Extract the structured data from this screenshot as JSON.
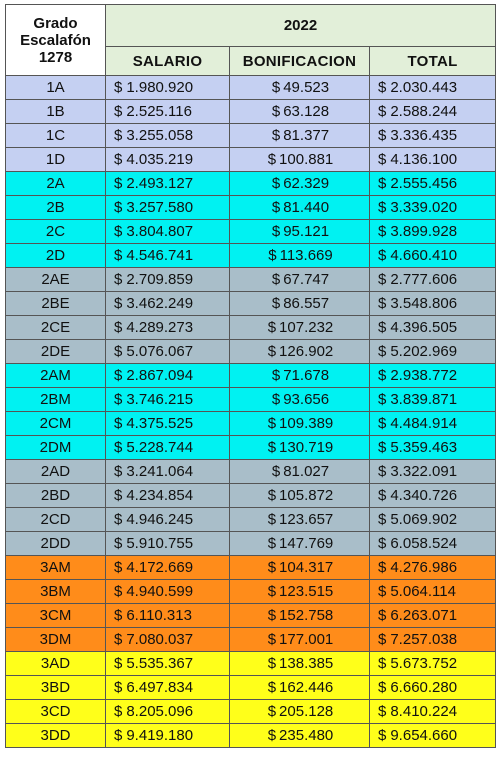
{
  "header": {
    "grado_line1": "Grado",
    "grado_line2": "Escalafón",
    "grado_line3": "1278",
    "year": "2022",
    "col_salario": "SALARIO",
    "col_bonificacion": "BONIFICACION",
    "col_total": "TOTAL"
  },
  "currency": "$",
  "group_colors": {
    "blue": "#c5d0f2",
    "cyan": "#00f2f2",
    "gray": "#a9bec9",
    "orange": "#ff8c1a",
    "yellow": "#ffff1a",
    "header_green": "#e2efd9"
  },
  "rows": [
    {
      "grado": "1A",
      "salario": "1.980.920",
      "bonificacion": "49.523",
      "total": "2.030.443",
      "group": "blue"
    },
    {
      "grado": "1B",
      "salario": "2.525.116",
      "bonificacion": "63.128",
      "total": "2.588.244",
      "group": "blue"
    },
    {
      "grado": "1C",
      "salario": "3.255.058",
      "bonificacion": "81.377",
      "total": "3.336.435",
      "group": "blue"
    },
    {
      "grado": "1D",
      "salario": "4.035.219",
      "bonificacion": "100.881",
      "total": "4.136.100",
      "group": "blue"
    },
    {
      "grado": "2A",
      "salario": "2.493.127",
      "bonificacion": "62.329",
      "total": "2.555.456",
      "group": "cyan"
    },
    {
      "grado": "2B",
      "salario": "3.257.580",
      "bonificacion": "81.440",
      "total": "3.339.020",
      "group": "cyan"
    },
    {
      "grado": "2C",
      "salario": "3.804.807",
      "bonificacion": "95.121",
      "total": "3.899.928",
      "group": "cyan"
    },
    {
      "grado": "2D",
      "salario": "4.546.741",
      "bonificacion": "113.669",
      "total": "4.660.410",
      "group": "cyan"
    },
    {
      "grado": "2AE",
      "salario": "2.709.859",
      "bonificacion": "67.747",
      "total": "2.777.606",
      "group": "gray"
    },
    {
      "grado": "2BE",
      "salario": "3.462.249",
      "bonificacion": "86.557",
      "total": "3.548.806",
      "group": "gray"
    },
    {
      "grado": "2CE",
      "salario": "4.289.273",
      "bonificacion": "107.232",
      "total": "4.396.505",
      "group": "gray"
    },
    {
      "grado": "2DE",
      "salario": "5.076.067",
      "bonificacion": "126.902",
      "total": "5.202.969",
      "group": "gray"
    },
    {
      "grado": "2AM",
      "salario": "2.867.094",
      "bonificacion": "71.678",
      "total": "2.938.772",
      "group": "cyan"
    },
    {
      "grado": "2BM",
      "salario": "3.746.215",
      "bonificacion": "93.656",
      "total": "3.839.871",
      "group": "cyan"
    },
    {
      "grado": "2CM",
      "salario": "4.375.525",
      "bonificacion": "109.389",
      "total": "4.484.914",
      "group": "cyan"
    },
    {
      "grado": "2DM",
      "salario": "5.228.744",
      "bonificacion": "130.719",
      "total": "5.359.463",
      "group": "cyan"
    },
    {
      "grado": "2AD",
      "salario": "3.241.064",
      "bonificacion": "81.027",
      "total": "3.322.091",
      "group": "gray"
    },
    {
      "grado": "2BD",
      "salario": "4.234.854",
      "bonificacion": "105.872",
      "total": "4.340.726",
      "group": "gray"
    },
    {
      "grado": "2CD",
      "salario": "4.946.245",
      "bonificacion": "123.657",
      "total": "5.069.902",
      "group": "gray"
    },
    {
      "grado": "2DD",
      "salario": "5.910.755",
      "bonificacion": "147.769",
      "total": "6.058.524",
      "group": "gray"
    },
    {
      "grado": "3AM",
      "salario": "4.172.669",
      "bonificacion": "104.317",
      "total": "4.276.986",
      "group": "orange"
    },
    {
      "grado": "3BM",
      "salario": "4.940.599",
      "bonificacion": "123.515",
      "total": "5.064.114",
      "group": "orange"
    },
    {
      "grado": "3CM",
      "salario": "6.110.313",
      "bonificacion": "152.758",
      "total": "6.263.071",
      "group": "orange"
    },
    {
      "grado": "3DM",
      "salario": "7.080.037",
      "bonificacion": "177.001",
      "total": "7.257.038",
      "group": "orange"
    },
    {
      "grado": "3AD",
      "salario": "5.535.367",
      "bonificacion": "138.385",
      "total": "5.673.752",
      "group": "yellow"
    },
    {
      "grado": "3BD",
      "salario": "6.497.834",
      "bonificacion": "162.446",
      "total": "6.660.280",
      "group": "yellow"
    },
    {
      "grado": "3CD",
      "salario": "8.205.096",
      "bonificacion": "205.128",
      "total": "8.410.224",
      "group": "yellow"
    },
    {
      "grado": "3DD",
      "salario": "9.419.180",
      "bonificacion": "235.480",
      "total": "9.654.660",
      "group": "yellow"
    }
  ]
}
